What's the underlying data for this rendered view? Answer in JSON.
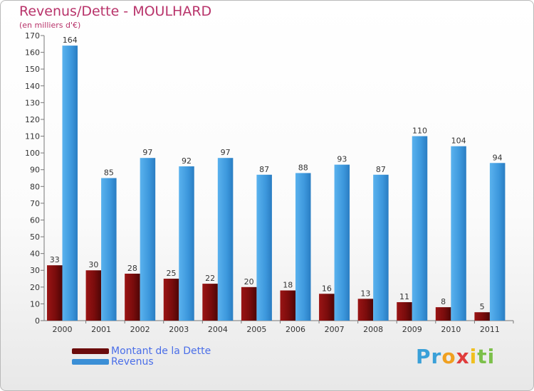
{
  "title": "Revenus/Dette - MOULHARD",
  "subtitle": "(en milliers d'€)",
  "chart_data": {
    "type": "bar",
    "categories": [
      "2000",
      "2001",
      "2002",
      "2003",
      "2004",
      "2005",
      "2006",
      "2007",
      "2008",
      "2009",
      "2010",
      "2011"
    ],
    "series": [
      {
        "name": "Montant de la Dette",
        "values": [
          33,
          30,
          28,
          25,
          22,
          20,
          18,
          16,
          13,
          11,
          8,
          5
        ],
        "color": "#8b1010"
      },
      {
        "name": "Revenus",
        "values": [
          164,
          85,
          97,
          92,
          97,
          87,
          88,
          93,
          87,
          110,
          104,
          94
        ],
        "color": "#3d9be0"
      }
    ],
    "ylim": [
      0,
      170
    ],
    "yticks": [
      0,
      10,
      20,
      30,
      40,
      50,
      60,
      70,
      80,
      90,
      100,
      110,
      120,
      130,
      140,
      150,
      160,
      170
    ],
    "grid": false,
    "legend": "bottom-left"
  },
  "legend": {
    "items": [
      {
        "label": "Montant de la Dette",
        "color": "#6b0b0b"
      },
      {
        "label": "Revenus",
        "color": "#3b8fd6"
      }
    ]
  },
  "logo": {
    "letters": [
      "P",
      "r",
      "o",
      "x",
      "i",
      "t",
      "i"
    ],
    "colors": [
      "#3aa0d8",
      "#3aa0d8",
      "#f0a020",
      "#e03c3c",
      "#f0c020",
      "#7cc04a",
      "#7cc04a"
    ]
  }
}
